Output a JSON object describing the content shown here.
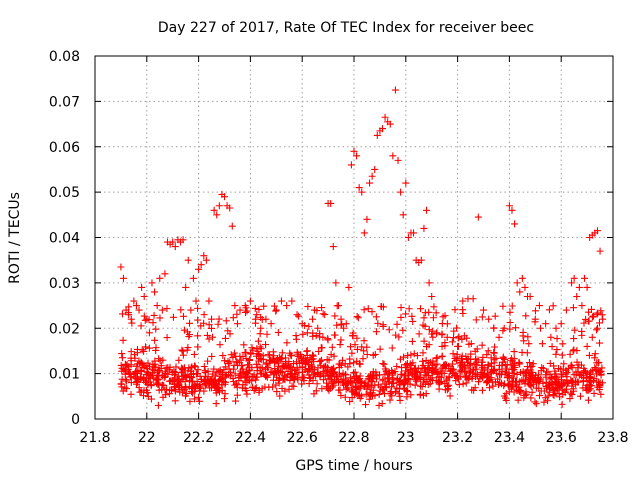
{
  "chart_data": {
    "type": "scatter",
    "title": "Day 227 of 2017, Rate Of TEC Index for receiver beec",
    "xlabel": "GPS time / hours",
    "ylabel": "ROTI / TECUs",
    "xlim": [
      21.8,
      23.8
    ],
    "ylim": [
      0,
      0.08
    ],
    "xticks": [
      21.8,
      22,
      22.2,
      22.4,
      22.6,
      22.8,
      23,
      23.2,
      23.4,
      23.6,
      23.8
    ],
    "xtick_labels": [
      "21.8",
      "22",
      "22.2",
      "22.4",
      "22.6",
      "22.8",
      "23",
      "23.2",
      "23.4",
      "23.6",
      "23.8"
    ],
    "yticks": [
      0,
      0.01,
      0.02,
      0.03,
      0.04,
      0.05,
      0.06,
      0.07,
      0.08
    ],
    "ytick_labels": [
      "0",
      "0.01",
      "0.02",
      "0.03",
      "0.04",
      "0.05",
      "0.06",
      "0.07",
      "0.08"
    ],
    "grid": true,
    "marker": "+",
    "color": "#ff0000",
    "series": [
      {
        "name": "ROTI",
        "points": [
          [
            21.9,
            0.0335
          ],
          [
            21.91,
            0.031
          ],
          [
            21.92,
            0.024
          ],
          [
            21.93,
            0.023
          ],
          [
            21.94,
            0.022
          ],
          [
            21.95,
            0.026
          ],
          [
            21.96,
            0.025
          ],
          [
            21.97,
            0.024
          ],
          [
            21.98,
            0.029
          ],
          [
            21.99,
            0.027
          ],
          [
            22.0,
            0.022
          ],
          [
            22.01,
            0.019
          ],
          [
            22.02,
            0.03
          ],
          [
            22.03,
            0.028
          ],
          [
            22.04,
            0.025
          ],
          [
            22.05,
            0.031
          ],
          [
            22.06,
            0.024
          ],
          [
            22.07,
            0.032
          ],
          [
            22.08,
            0.039
          ],
          [
            22.09,
            0.0385
          ],
          [
            22.1,
            0.039
          ],
          [
            22.11,
            0.038
          ],
          [
            22.12,
            0.0395
          ],
          [
            22.13,
            0.039
          ],
          [
            22.14,
            0.0395
          ],
          [
            22.15,
            0.029
          ],
          [
            22.16,
            0.035
          ],
          [
            22.17,
            0.024
          ],
          [
            22.18,
            0.031
          ],
          [
            22.19,
            0.026
          ],
          [
            22.2,
            0.033
          ],
          [
            22.21,
            0.034
          ],
          [
            22.22,
            0.036
          ],
          [
            22.23,
            0.035
          ],
          [
            22.24,
            0.026
          ],
          [
            22.25,
            0.022
          ],
          [
            22.26,
            0.046
          ],
          [
            22.27,
            0.045
          ],
          [
            22.28,
            0.047
          ],
          [
            22.29,
            0.0495
          ],
          [
            22.3,
            0.049
          ],
          [
            22.31,
            0.047
          ],
          [
            22.32,
            0.0465
          ],
          [
            22.33,
            0.0425
          ],
          [
            22.34,
            0.025
          ],
          [
            22.35,
            0.021
          ],
          [
            22.36,
            0.024
          ],
          [
            22.38,
            0.025
          ],
          [
            22.4,
            0.026
          ],
          [
            22.42,
            0.022
          ],
          [
            22.44,
            0.02
          ],
          [
            22.46,
            0.022
          ],
          [
            22.48,
            0.021
          ],
          [
            22.5,
            0.024
          ],
          [
            22.52,
            0.026
          ],
          [
            22.54,
            0.025
          ],
          [
            22.56,
            0.026
          ],
          [
            22.58,
            0.023
          ],
          [
            22.6,
            0.021
          ],
          [
            22.62,
            0.019
          ],
          [
            22.64,
            0.022
          ],
          [
            22.66,
            0.02
          ],
          [
            22.68,
            0.018
          ],
          [
            22.7,
            0.0475
          ],
          [
            22.71,
            0.0475
          ],
          [
            22.72,
            0.038
          ],
          [
            22.73,
            0.03
          ],
          [
            22.74,
            0.025
          ],
          [
            22.75,
            0.022
          ],
          [
            22.76,
            0.02
          ],
          [
            22.77,
            0.021
          ],
          [
            22.78,
            0.029
          ],
          [
            22.79,
            0.056
          ],
          [
            22.8,
            0.059
          ],
          [
            22.81,
            0.058
          ],
          [
            22.82,
            0.051
          ],
          [
            22.83,
            0.05
          ],
          [
            22.84,
            0.041
          ],
          [
            22.85,
            0.044
          ],
          [
            22.86,
            0.052
          ],
          [
            22.87,
            0.0535
          ],
          [
            22.88,
            0.055
          ],
          [
            22.89,
            0.0625
          ],
          [
            22.9,
            0.0635
          ],
          [
            22.91,
            0.064
          ],
          [
            22.92,
            0.0665
          ],
          [
            22.93,
            0.0655
          ],
          [
            22.94,
            0.065
          ],
          [
            22.95,
            0.058
          ],
          [
            22.96,
            0.0725
          ],
          [
            22.97,
            0.057
          ],
          [
            22.98,
            0.05
          ],
          [
            22.99,
            0.045
          ],
          [
            23.0,
            0.052
          ],
          [
            23.01,
            0.04
          ],
          [
            23.02,
            0.041
          ],
          [
            23.03,
            0.041
          ],
          [
            23.04,
            0.035
          ],
          [
            23.05,
            0.0345
          ],
          [
            23.06,
            0.035
          ],
          [
            23.07,
            0.042
          ],
          [
            23.08,
            0.046
          ],
          [
            23.09,
            0.03
          ],
          [
            23.1,
            0.027
          ],
          [
            23.12,
            0.019
          ],
          [
            23.14,
            0.016
          ],
          [
            23.16,
            0.018
          ],
          [
            23.18,
            0.017
          ],
          [
            23.2,
            0.016
          ],
          [
            23.22,
            0.026
          ],
          [
            23.24,
            0.0265
          ],
          [
            23.26,
            0.0265
          ],
          [
            23.28,
            0.0445
          ],
          [
            23.3,
            0.024
          ],
          [
            23.32,
            0.022
          ],
          [
            23.34,
            0.02
          ],
          [
            23.36,
            0.018
          ],
          [
            23.38,
            0.02
          ],
          [
            23.4,
            0.047
          ],
          [
            23.41,
            0.046
          ],
          [
            23.42,
            0.043
          ],
          [
            23.43,
            0.03
          ],
          [
            23.44,
            0.028
          ],
          [
            23.45,
            0.031
          ],
          [
            23.46,
            0.029
          ],
          [
            23.47,
            0.027
          ],
          [
            23.48,
            0.027
          ],
          [
            23.5,
            0.022
          ],
          [
            23.52,
            0.02
          ],
          [
            23.54,
            0.021
          ],
          [
            23.56,
            0.018
          ],
          [
            23.58,
            0.02
          ],
          [
            23.6,
            0.021
          ],
          [
            23.62,
            0.024
          ],
          [
            23.64,
            0.03
          ],
          [
            23.65,
            0.031
          ],
          [
            23.66,
            0.027
          ],
          [
            23.67,
            0.029
          ],
          [
            23.68,
            0.025
          ],
          [
            23.69,
            0.031
          ],
          [
            23.7,
            0.029
          ],
          [
            23.71,
            0.04
          ],
          [
            23.72,
            0.0405
          ],
          [
            23.73,
            0.041
          ],
          [
            23.74,
            0.0415
          ],
          [
            23.75,
            0.037
          ],
          [
            23.76,
            0.022
          ],
          [
            23.74,
            0.02
          ],
          [
            23.72,
            0.018
          ],
          [
            23.7,
            0.016
          ]
        ],
        "band": {
          "description": "dense cloud of samples between 0.004 and 0.015 TECU across the full time range",
          "x_range": [
            21.9,
            23.76
          ],
          "y_range": [
            0.003,
            0.016
          ],
          "count": 1400
        }
      }
    ]
  }
}
